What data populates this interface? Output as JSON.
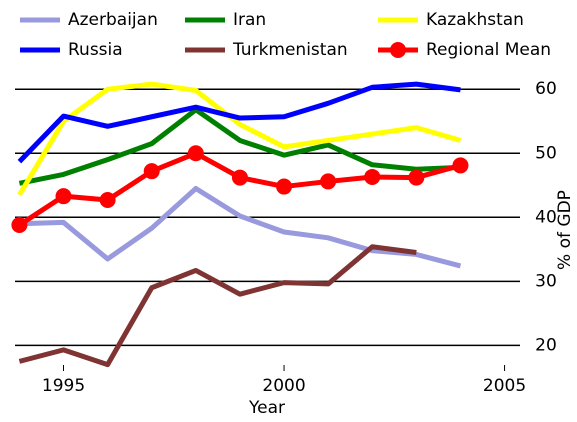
{
  "chart_data": {
    "type": "line",
    "x": [
      1994,
      1995,
      1996,
      1997,
      1998,
      1999,
      2000,
      2001,
      2002,
      2003,
      2004
    ],
    "series": [
      {
        "name": "Azerbaijan",
        "color": "#9999dd",
        "values": [
          39,
          39.2,
          33.5,
          38.3,
          44.5,
          40.2,
          37.7,
          36.8,
          34.8,
          34.2,
          32.4
        ]
      },
      {
        "name": "Iran",
        "color": "#008000",
        "values": [
          45.3,
          46.7,
          49,
          51.5,
          56.8,
          52,
          49.7,
          51.3,
          48.2,
          47.5,
          47.8
        ]
      },
      {
        "name": "Kazakhstan",
        "color": "#ffff00",
        "values": [
          43.5,
          55,
          60,
          60.8,
          59.8,
          54.5,
          51,
          52,
          53,
          54,
          52
        ]
      },
      {
        "name": "Russia",
        "color": "#0000ff",
        "values": [
          48.7,
          55.8,
          54.2,
          55.7,
          57.2,
          55.5,
          55.7,
          57.8,
          60.3,
          60.8,
          59.9
        ]
      },
      {
        "name": "Turkmenistan",
        "color": "#803333",
        "values": [
          17.5,
          19.3,
          17,
          29,
          31.7,
          28,
          29.8,
          29.6,
          35.4,
          34.5,
          null
        ]
      },
      {
        "name": "Regional Mean",
        "color": "#ff0000",
        "markers": true,
        "values": [
          38.8,
          43.3,
          42.7,
          47.2,
          50,
          46.2,
          44.8,
          45.6,
          46.3,
          46.2,
          48.1
        ]
      }
    ],
    "xlabel": "Year",
    "ylabel": "% of GDP",
    "xlim": [
      1993.9,
      2005.35
    ],
    "xticks": [
      1995,
      2000,
      2005
    ],
    "ylim": [
      16,
      63
    ],
    "yticks": [
      20,
      30,
      40,
      50,
      60
    ],
    "grid": true,
    "yaxis_side": "right"
  }
}
